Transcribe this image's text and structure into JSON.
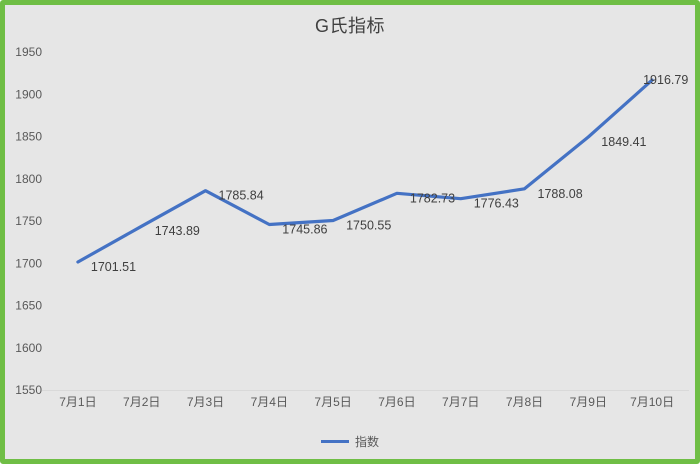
{
  "chart_data": {
    "type": "line",
    "title": "G氏指标",
    "categories": [
      "7月1日",
      "7月2日",
      "7月3日",
      "7月4日",
      "7月5日",
      "7月6日",
      "7月7日",
      "7月8日",
      "7月9日",
      "7月10日"
    ],
    "series": [
      {
        "name": "指数",
        "values": [
          1701.51,
          1743.89,
          1785.84,
          1745.86,
          1750.55,
          1782.73,
          1776.43,
          1788.08,
          1849.41,
          1916.79
        ],
        "labels": [
          "1701.51",
          "1743.89",
          "1785.84",
          "1745.86",
          "1750.55",
          "1782.73",
          "1776.43",
          "1788.08",
          "1849.41",
          "1916.79"
        ]
      }
    ],
    "ylim": [
      1550,
      1950
    ],
    "yticks": [
      1550,
      1600,
      1650,
      1700,
      1750,
      1800,
      1850,
      1900,
      1950
    ],
    "xlabel": "",
    "ylabel": "",
    "grid": "off",
    "legend_position": "bottom-center",
    "colors": {
      "line": "#4472c4",
      "frame_border": "#6fbe45",
      "background": "#e6e6e6",
      "axis_text": "#595959",
      "title_text": "#404040",
      "baseline": "#d9d9d9"
    }
  }
}
